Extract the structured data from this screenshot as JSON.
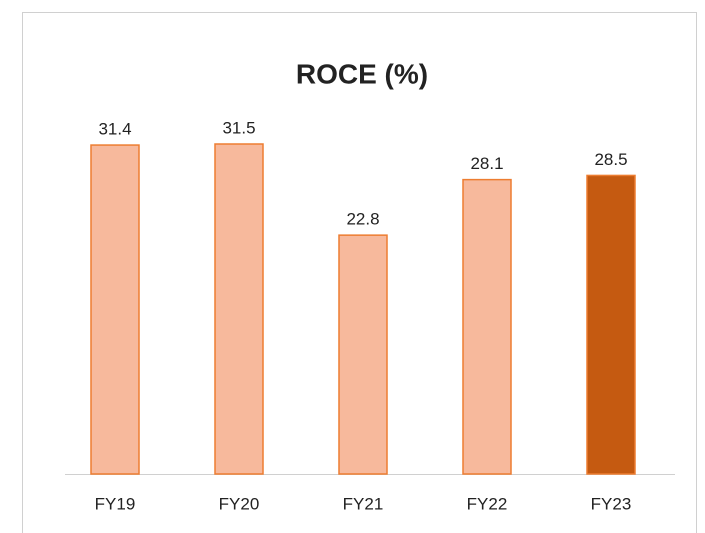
{
  "chart_data": {
    "type": "bar",
    "title": "ROCE (%)",
    "categories": [
      "FY19",
      "FY20",
      "FY21",
      "FY22",
      "FY23"
    ],
    "values": [
      31.4,
      31.5,
      22.8,
      28.1,
      28.5
    ],
    "colors": [
      "#f7b99c",
      "#f7b99c",
      "#f7b99c",
      "#f7b99c",
      "#c55a11"
    ],
    "border_color": "#ed7d31"
  }
}
